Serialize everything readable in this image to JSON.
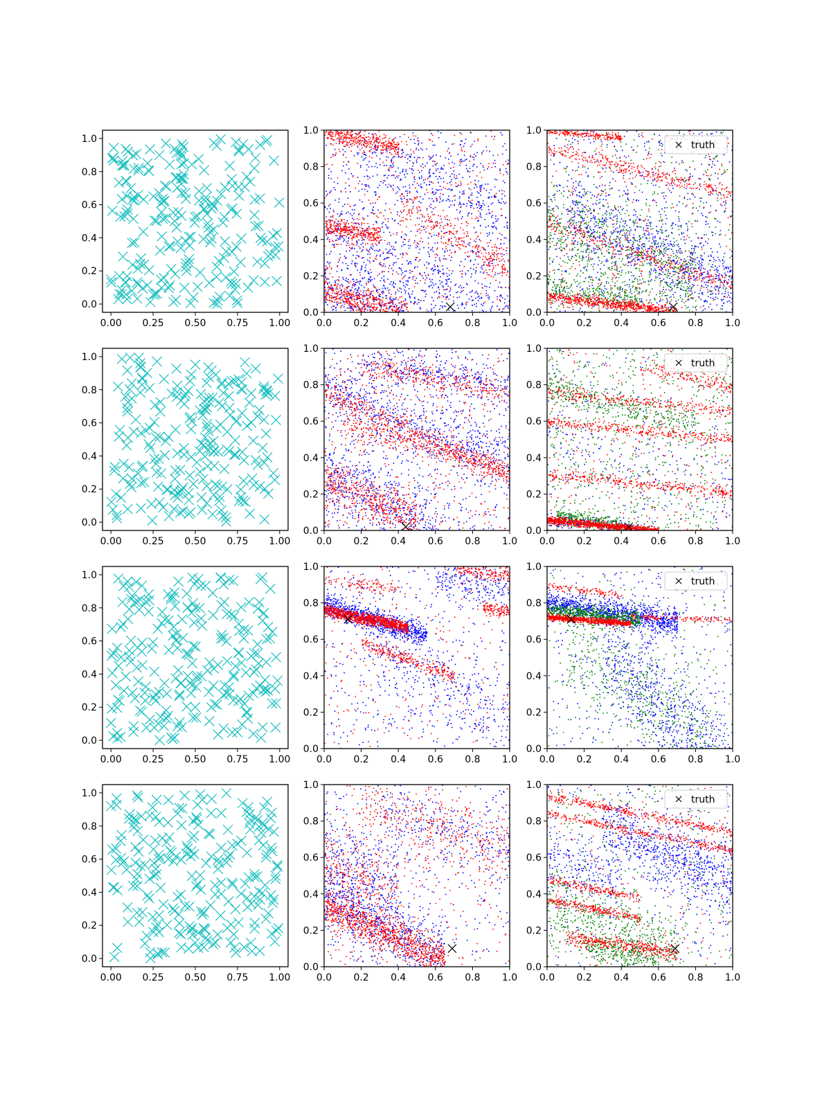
{
  "figure": {
    "rows": 4,
    "cols": 3,
    "colors": {
      "samples": "#1cbfbf",
      "red": "#ff0000",
      "blue": "#0000ff",
      "green": "#008000",
      "truth": "#000000",
      "axis": "#000000"
    }
  },
  "legend": {
    "label": "truth",
    "marker": "x"
  },
  "chart_data": [
    {
      "panel": "r1c1",
      "type": "scatter",
      "kind": "samples",
      "marker": "x",
      "seed": 11,
      "n": 240,
      "xlim": [
        -0.05,
        1.05
      ],
      "ylim": [
        -0.05,
        1.05
      ],
      "xticks": [
        "0.00",
        "0.25",
        "0.50",
        "0.75",
        "1.00"
      ],
      "yticks": [
        "0.0",
        "0.2",
        "0.4",
        "0.6",
        "0.8",
        "1.0"
      ],
      "legend": false
    },
    {
      "panel": "r1c2",
      "type": "scatter",
      "kind": "posterior",
      "seed": 12,
      "truth": [
        0.68,
        0.03
      ],
      "xlim": [
        0,
        1
      ],
      "ylim": [
        0,
        1
      ],
      "xticks": [
        "0.0",
        "0.2",
        "0.4",
        "0.6",
        "0.8",
        "1.0"
      ],
      "yticks": [
        "0.0",
        "0.2",
        "0.4",
        "0.6",
        "0.8",
        "1.0"
      ],
      "legend": false,
      "bands": [
        {
          "color": "red",
          "x0": 0.0,
          "x1": 0.45,
          "y0": 0.12,
          "slope": -0.3,
          "sigma": 0.04,
          "n": 450
        },
        {
          "color": "red",
          "x0": 0.0,
          "x1": 0.3,
          "y0": 0.48,
          "slope": -0.2,
          "sigma": 0.03,
          "n": 300
        },
        {
          "color": "red",
          "x0": 0.0,
          "x1": 0.4,
          "y0": 0.99,
          "slope": -0.2,
          "sigma": 0.025,
          "n": 350
        },
        {
          "color": "red",
          "x0": 0.4,
          "x1": 1.0,
          "y0": 0.8,
          "slope": -0.55,
          "sigma": 0.05,
          "n": 250
        },
        {
          "color": "blue",
          "x0": 0.0,
          "x1": 1.0,
          "y0": 0.45,
          "slope": -0.5,
          "sigma": 0.12,
          "n": 500
        },
        {
          "color": "blue",
          "x0": 0.0,
          "x1": 0.5,
          "y0": 0.15,
          "slope": -0.3,
          "sigma": 0.06,
          "n": 250
        },
        {
          "color": "blue",
          "x0": 0.2,
          "x1": 1.0,
          "y0": 0.95,
          "slope": -0.4,
          "sigma": 0.12,
          "n": 350
        }
      ],
      "noise": [
        {
          "color": "red",
          "n": 500
        },
        {
          "color": "blue",
          "n": 700
        }
      ]
    },
    {
      "panel": "r1c3",
      "type": "scatter",
      "kind": "posterior",
      "seed": 13,
      "truth": [
        0.68,
        0.03
      ],
      "xlim": [
        0,
        1
      ],
      "ylim": [
        0,
        1
      ],
      "xticks": [
        "0.0",
        "0.2",
        "0.4",
        "0.6",
        "0.8",
        "1.0"
      ],
      "yticks": [
        "0.0",
        "0.2",
        "0.4",
        "0.6",
        "0.8",
        "1.0"
      ],
      "legend": true,
      "bands": [
        {
          "color": "red",
          "x0": 0.0,
          "x1": 0.7,
          "y0": 0.09,
          "slope": -0.12,
          "sigma": 0.015,
          "n": 600
        },
        {
          "color": "red",
          "x0": 0.0,
          "x1": 1.0,
          "y0": 0.5,
          "slope": -0.35,
          "sigma": 0.03,
          "n": 300
        },
        {
          "color": "red",
          "x0": 0.0,
          "x1": 1.0,
          "y0": 0.9,
          "slope": -0.25,
          "sigma": 0.02,
          "n": 300
        },
        {
          "color": "red",
          "x0": 0.0,
          "x1": 0.4,
          "y0": 1.0,
          "slope": -0.1,
          "sigma": 0.01,
          "n": 200
        },
        {
          "color": "blue",
          "x0": 0.1,
          "x1": 1.0,
          "y0": 0.6,
          "slope": -0.45,
          "sigma": 0.1,
          "n": 700
        },
        {
          "color": "green",
          "x0": 0.0,
          "x1": 0.8,
          "y0": 0.5,
          "slope": -0.4,
          "sigma": 0.12,
          "n": 600
        },
        {
          "color": "green",
          "x0": 0.0,
          "x1": 0.5,
          "y0": 0.15,
          "slope": -0.15,
          "sigma": 0.04,
          "n": 250
        }
      ],
      "noise": [
        {
          "color": "red",
          "n": 300
        },
        {
          "color": "blue",
          "n": 600
        },
        {
          "color": "green",
          "n": 400
        }
      ]
    },
    {
      "panel": "r2c1",
      "type": "scatter",
      "kind": "samples",
      "marker": "x",
      "seed": 21,
      "n": 240,
      "xlim": [
        -0.05,
        1.05
      ],
      "ylim": [
        -0.05,
        1.05
      ],
      "xticks": [
        "0.00",
        "0.25",
        "0.50",
        "0.75",
        "1.00"
      ],
      "yticks": [
        "0.0",
        "0.2",
        "0.4",
        "0.6",
        "0.8",
        "1.0"
      ],
      "legend": false
    },
    {
      "panel": "r2c2",
      "type": "scatter",
      "kind": "posterior",
      "seed": 22,
      "truth": [
        0.44,
        0.02
      ],
      "xlim": [
        0,
        1
      ],
      "ylim": [
        0,
        1
      ],
      "xticks": [
        "0.0",
        "0.2",
        "0.4",
        "0.6",
        "0.8",
        "1.0"
      ],
      "yticks": [
        "0.0",
        "0.2",
        "0.4",
        "0.6",
        "0.8",
        "1.0"
      ],
      "legend": false,
      "bands": [
        {
          "color": "red",
          "x0": 0.0,
          "x1": 0.5,
          "y0": 0.28,
          "slope": -0.45,
          "sigma": 0.06,
          "n": 450
        },
        {
          "color": "red",
          "x0": 0.0,
          "x1": 1.0,
          "y0": 0.76,
          "slope": -0.45,
          "sigma": 0.03,
          "n": 450
        },
        {
          "color": "red",
          "x0": 0.1,
          "x1": 1.0,
          "y0": 0.62,
          "slope": -0.3,
          "sigma": 0.03,
          "n": 300
        },
        {
          "color": "red",
          "x0": 0.2,
          "x1": 1.0,
          "y0": 0.95,
          "slope": -0.2,
          "sigma": 0.03,
          "n": 250
        },
        {
          "color": "blue",
          "x0": 0.0,
          "x1": 0.6,
          "y0": 0.3,
          "slope": -0.5,
          "sigma": 0.1,
          "n": 450
        },
        {
          "color": "blue",
          "x0": 0.0,
          "x1": 1.0,
          "y0": 0.78,
          "slope": -0.4,
          "sigma": 0.08,
          "n": 550
        },
        {
          "color": "blue",
          "x0": 0.2,
          "x1": 1.0,
          "y0": 0.95,
          "slope": -0.15,
          "sigma": 0.04,
          "n": 250
        }
      ],
      "noise": [
        {
          "color": "red",
          "n": 450
        },
        {
          "color": "blue",
          "n": 600
        }
      ]
    },
    {
      "panel": "r2c3",
      "type": "scatter",
      "kind": "posterior",
      "seed": 23,
      "truth": [
        0.44,
        0.02
      ],
      "xlim": [
        0,
        1
      ],
      "ylim": [
        0,
        1
      ],
      "xticks": [
        "0.0",
        "0.2",
        "0.4",
        "0.6",
        "0.8",
        "1.0"
      ],
      "yticks": [
        "0.0",
        "0.2",
        "0.4",
        "0.6",
        "0.8",
        "1.0"
      ],
      "legend": true,
      "bands": [
        {
          "color": "red",
          "x0": 0.0,
          "x1": 0.6,
          "y0": 0.06,
          "slope": -0.1,
          "sigma": 0.01,
          "n": 900
        },
        {
          "color": "green",
          "x0": 0.05,
          "x1": 0.4,
          "y0": 0.09,
          "slope": -0.15,
          "sigma": 0.02,
          "n": 250
        },
        {
          "color": "blue",
          "x0": 0.0,
          "x1": 0.5,
          "y0": 0.06,
          "slope": -0.1,
          "sigma": 0.02,
          "n": 200
        },
        {
          "color": "red",
          "x0": 0.0,
          "x1": 1.0,
          "y0": 0.31,
          "slope": -0.1,
          "sigma": 0.015,
          "n": 300
        },
        {
          "color": "red",
          "x0": 0.0,
          "x1": 1.0,
          "y0": 0.6,
          "slope": -0.1,
          "sigma": 0.015,
          "n": 300
        },
        {
          "color": "red",
          "x0": 0.0,
          "x1": 1.0,
          "y0": 0.76,
          "slope": -0.1,
          "sigma": 0.015,
          "n": 250
        },
        {
          "color": "red",
          "x0": 0.5,
          "x1": 1.0,
          "y0": 1.0,
          "slope": -0.2,
          "sigma": 0.02,
          "n": 150
        },
        {
          "color": "green",
          "x0": 0.0,
          "x1": 0.8,
          "y0": 0.78,
          "slope": -0.25,
          "sigma": 0.04,
          "n": 300
        },
        {
          "color": "blue",
          "x0": 0.0,
          "x1": 1.0,
          "y0": 0.5,
          "slope": -0.3,
          "sigma": 0.15,
          "n": 150
        }
      ],
      "noise": [
        {
          "color": "red",
          "n": 250
        },
        {
          "color": "green",
          "n": 700
        },
        {
          "color": "blue",
          "n": 150
        }
      ]
    },
    {
      "panel": "r3c1",
      "type": "scatter",
      "kind": "samples",
      "marker": "x",
      "seed": 31,
      "n": 240,
      "xlim": [
        -0.05,
        1.05
      ],
      "ylim": [
        -0.05,
        1.05
      ],
      "xticks": [
        "0.00",
        "0.25",
        "0.50",
        "0.75",
        "1.00"
      ],
      "yticks": [
        "0.0",
        "0.2",
        "0.4",
        "0.6",
        "0.8",
        "1.0"
      ],
      "legend": false
    },
    {
      "panel": "r3c2",
      "type": "scatter",
      "kind": "posterior",
      "seed": 32,
      "truth": [
        0.13,
        0.71
      ],
      "xlim": [
        0,
        1
      ],
      "ylim": [
        0,
        1
      ],
      "xticks": [
        "0.0",
        "0.2",
        "0.4",
        "0.6",
        "0.8",
        "1.0"
      ],
      "yticks": [
        "0.0",
        "0.2",
        "0.4",
        "0.6",
        "0.8",
        "1.0"
      ],
      "legend": false,
      "bands": [
        {
          "color": "blue",
          "x0": 0.0,
          "x1": 0.55,
          "y0": 0.79,
          "slope": -0.3,
          "sigma": 0.03,
          "n": 800
        },
        {
          "color": "red",
          "x0": 0.0,
          "x1": 0.45,
          "y0": 0.76,
          "slope": -0.2,
          "sigma": 0.015,
          "n": 900
        },
        {
          "color": "red",
          "x0": 0.2,
          "x1": 0.7,
          "y0": 0.65,
          "slope": -0.35,
          "sigma": 0.02,
          "n": 250
        },
        {
          "color": "red",
          "x0": 0.0,
          "x1": 0.4,
          "y0": 0.92,
          "slope": -0.1,
          "sigma": 0.02,
          "n": 100
        },
        {
          "color": "red",
          "x0": 0.7,
          "x1": 1.0,
          "y0": 1.15,
          "slope": -0.2,
          "sigma": 0.03,
          "n": 200
        },
        {
          "color": "red",
          "x0": 0.85,
          "x1": 1.0,
          "y0": 0.9,
          "slope": -0.15,
          "sigma": 0.02,
          "n": 100
        },
        {
          "color": "blue",
          "x0": 0.2,
          "x1": 1.0,
          "y0": 0.8,
          "slope": -0.7,
          "sigma": 0.12,
          "n": 350
        },
        {
          "color": "blue",
          "x0": 0.6,
          "x1": 1.0,
          "y0": 1.0,
          "slope": -0.1,
          "sigma": 0.06,
          "n": 200
        }
      ],
      "noise": [
        {
          "color": "red",
          "n": 200
        },
        {
          "color": "blue",
          "n": 400
        }
      ]
    },
    {
      "panel": "r3c3",
      "type": "scatter",
      "kind": "posterior",
      "seed": 33,
      "truth": [
        0.13,
        0.71
      ],
      "xlim": [
        0,
        1
      ],
      "ylim": [
        0,
        1
      ],
      "xticks": [
        "0.0",
        "0.2",
        "0.4",
        "0.6",
        "0.8",
        "1.0"
      ],
      "yticks": [
        "0.0",
        "0.2",
        "0.4",
        "0.6",
        "0.8",
        "1.0"
      ],
      "legend": true,
      "bands": [
        {
          "color": "blue",
          "x0": 0.0,
          "x1": 0.7,
          "y0": 0.8,
          "slope": -0.15,
          "sigma": 0.035,
          "n": 1000
        },
        {
          "color": "green",
          "x0": 0.0,
          "x1": 0.5,
          "y0": 0.76,
          "slope": -0.1,
          "sigma": 0.025,
          "n": 600
        },
        {
          "color": "red",
          "x0": 0.0,
          "x1": 0.45,
          "y0": 0.725,
          "slope": -0.08,
          "sigma": 0.008,
          "n": 800
        },
        {
          "color": "red",
          "x0": 0.45,
          "x1": 1.0,
          "y0": 0.74,
          "slope": -0.03,
          "sigma": 0.008,
          "n": 120
        },
        {
          "color": "red",
          "x0": 0.0,
          "x1": 0.4,
          "y0": 0.9,
          "slope": -0.15,
          "sigma": 0.01,
          "n": 100
        },
        {
          "color": "blue",
          "x0": 0.3,
          "x1": 1.0,
          "y0": 0.85,
          "slope": -1.0,
          "sigma": 0.15,
          "n": 700
        },
        {
          "color": "green",
          "x0": 0.1,
          "x1": 0.9,
          "y0": 0.7,
          "slope": -0.8,
          "sigma": 0.15,
          "n": 500
        }
      ],
      "noise": [
        {
          "color": "blue",
          "n": 300
        },
        {
          "color": "green",
          "n": 200
        }
      ]
    },
    {
      "panel": "r4c1",
      "type": "scatter",
      "kind": "samples",
      "marker": "x",
      "seed": 41,
      "n": 240,
      "xlim": [
        -0.05,
        1.05
      ],
      "ylim": [
        -0.05,
        1.05
      ],
      "xticks": [
        "0.00",
        "0.25",
        "0.50",
        "0.75",
        "1.00"
      ],
      "yticks": [
        "0.0",
        "0.2",
        "0.4",
        "0.6",
        "0.8",
        "1.0"
      ],
      "legend": false
    },
    {
      "panel": "r4c2",
      "type": "scatter",
      "kind": "posterior",
      "seed": 42,
      "truth": [
        0.69,
        0.1
      ],
      "xlim": [
        0,
        1
      ],
      "ylim": [
        0,
        1
      ],
      "xticks": [
        "0.0",
        "0.2",
        "0.4",
        "0.6",
        "0.8",
        "1.0"
      ],
      "yticks": [
        "0.0",
        "0.2",
        "0.4",
        "0.6",
        "0.8",
        "1.0"
      ],
      "legend": false,
      "bands": [
        {
          "color": "red",
          "x0": 0.0,
          "x1": 0.65,
          "y0": 0.33,
          "slope": -0.45,
          "sigma": 0.05,
          "n": 900
        },
        {
          "color": "blue",
          "x0": 0.0,
          "x1": 0.65,
          "y0": 0.38,
          "slope": -0.5,
          "sigma": 0.1,
          "n": 700
        },
        {
          "color": "red",
          "x0": 0.0,
          "x1": 0.4,
          "y0": 0.6,
          "slope": -0.5,
          "sigma": 0.1,
          "n": 250
        },
        {
          "color": "blue",
          "x0": 0.0,
          "x1": 0.4,
          "y0": 0.65,
          "slope": -0.5,
          "sigma": 0.12,
          "n": 250
        },
        {
          "color": "red",
          "x0": 0.2,
          "x1": 1.0,
          "y0": 0.95,
          "slope": -0.3,
          "sigma": 0.08,
          "n": 300
        },
        {
          "color": "blue",
          "x0": 0.3,
          "x1": 1.0,
          "y0": 0.95,
          "slope": -0.3,
          "sigma": 0.1,
          "n": 250
        }
      ],
      "noise": [
        {
          "color": "red",
          "n": 300
        },
        {
          "color": "blue",
          "n": 250
        }
      ]
    },
    {
      "panel": "r4c3",
      "type": "scatter",
      "kind": "posterior",
      "seed": 43,
      "truth": [
        0.69,
        0.1
      ],
      "xlim": [
        0,
        1
      ],
      "ylim": [
        0,
        1
      ],
      "xticks": [
        "0.0",
        "0.2",
        "0.4",
        "0.6",
        "0.8",
        "1.0"
      ],
      "yticks": [
        "0.0",
        "0.2",
        "0.4",
        "0.6",
        "0.8",
        "1.0"
      ],
      "legend": true,
      "bands": [
        {
          "color": "red",
          "x0": 0.0,
          "x1": 1.0,
          "y0": 0.94,
          "slope": -0.2,
          "sigma": 0.012,
          "n": 350
        },
        {
          "color": "red",
          "x0": 0.0,
          "x1": 1.0,
          "y0": 0.84,
          "slope": -0.2,
          "sigma": 0.012,
          "n": 300
        },
        {
          "color": "red",
          "x0": 0.0,
          "x1": 0.5,
          "y0": 0.48,
          "slope": -0.2,
          "sigma": 0.012,
          "n": 180
        },
        {
          "color": "red",
          "x0": 0.0,
          "x1": 0.5,
          "y0": 0.37,
          "slope": -0.2,
          "sigma": 0.012,
          "n": 220
        },
        {
          "color": "red",
          "x0": 0.1,
          "x1": 0.7,
          "y0": 0.18,
          "slope": -0.15,
          "sigma": 0.02,
          "n": 350
        },
        {
          "color": "blue",
          "x0": 0.3,
          "x1": 1.0,
          "y0": 0.9,
          "slope": -0.45,
          "sigma": 0.1,
          "n": 700
        },
        {
          "color": "blue",
          "x0": 0.0,
          "x1": 0.4,
          "y0": 0.6,
          "slope": -0.4,
          "sigma": 0.1,
          "n": 200
        },
        {
          "color": "green",
          "x0": 0.0,
          "x1": 0.7,
          "y0": 0.35,
          "slope": -0.4,
          "sigma": 0.1,
          "n": 500
        },
        {
          "color": "green",
          "x0": 0.2,
          "x1": 0.6,
          "y0": 0.15,
          "slope": -0.2,
          "sigma": 0.04,
          "n": 200
        }
      ],
      "noise": [
        {
          "color": "red",
          "n": 150
        },
        {
          "color": "blue",
          "n": 250
        },
        {
          "color": "green",
          "n": 300
        }
      ]
    }
  ]
}
